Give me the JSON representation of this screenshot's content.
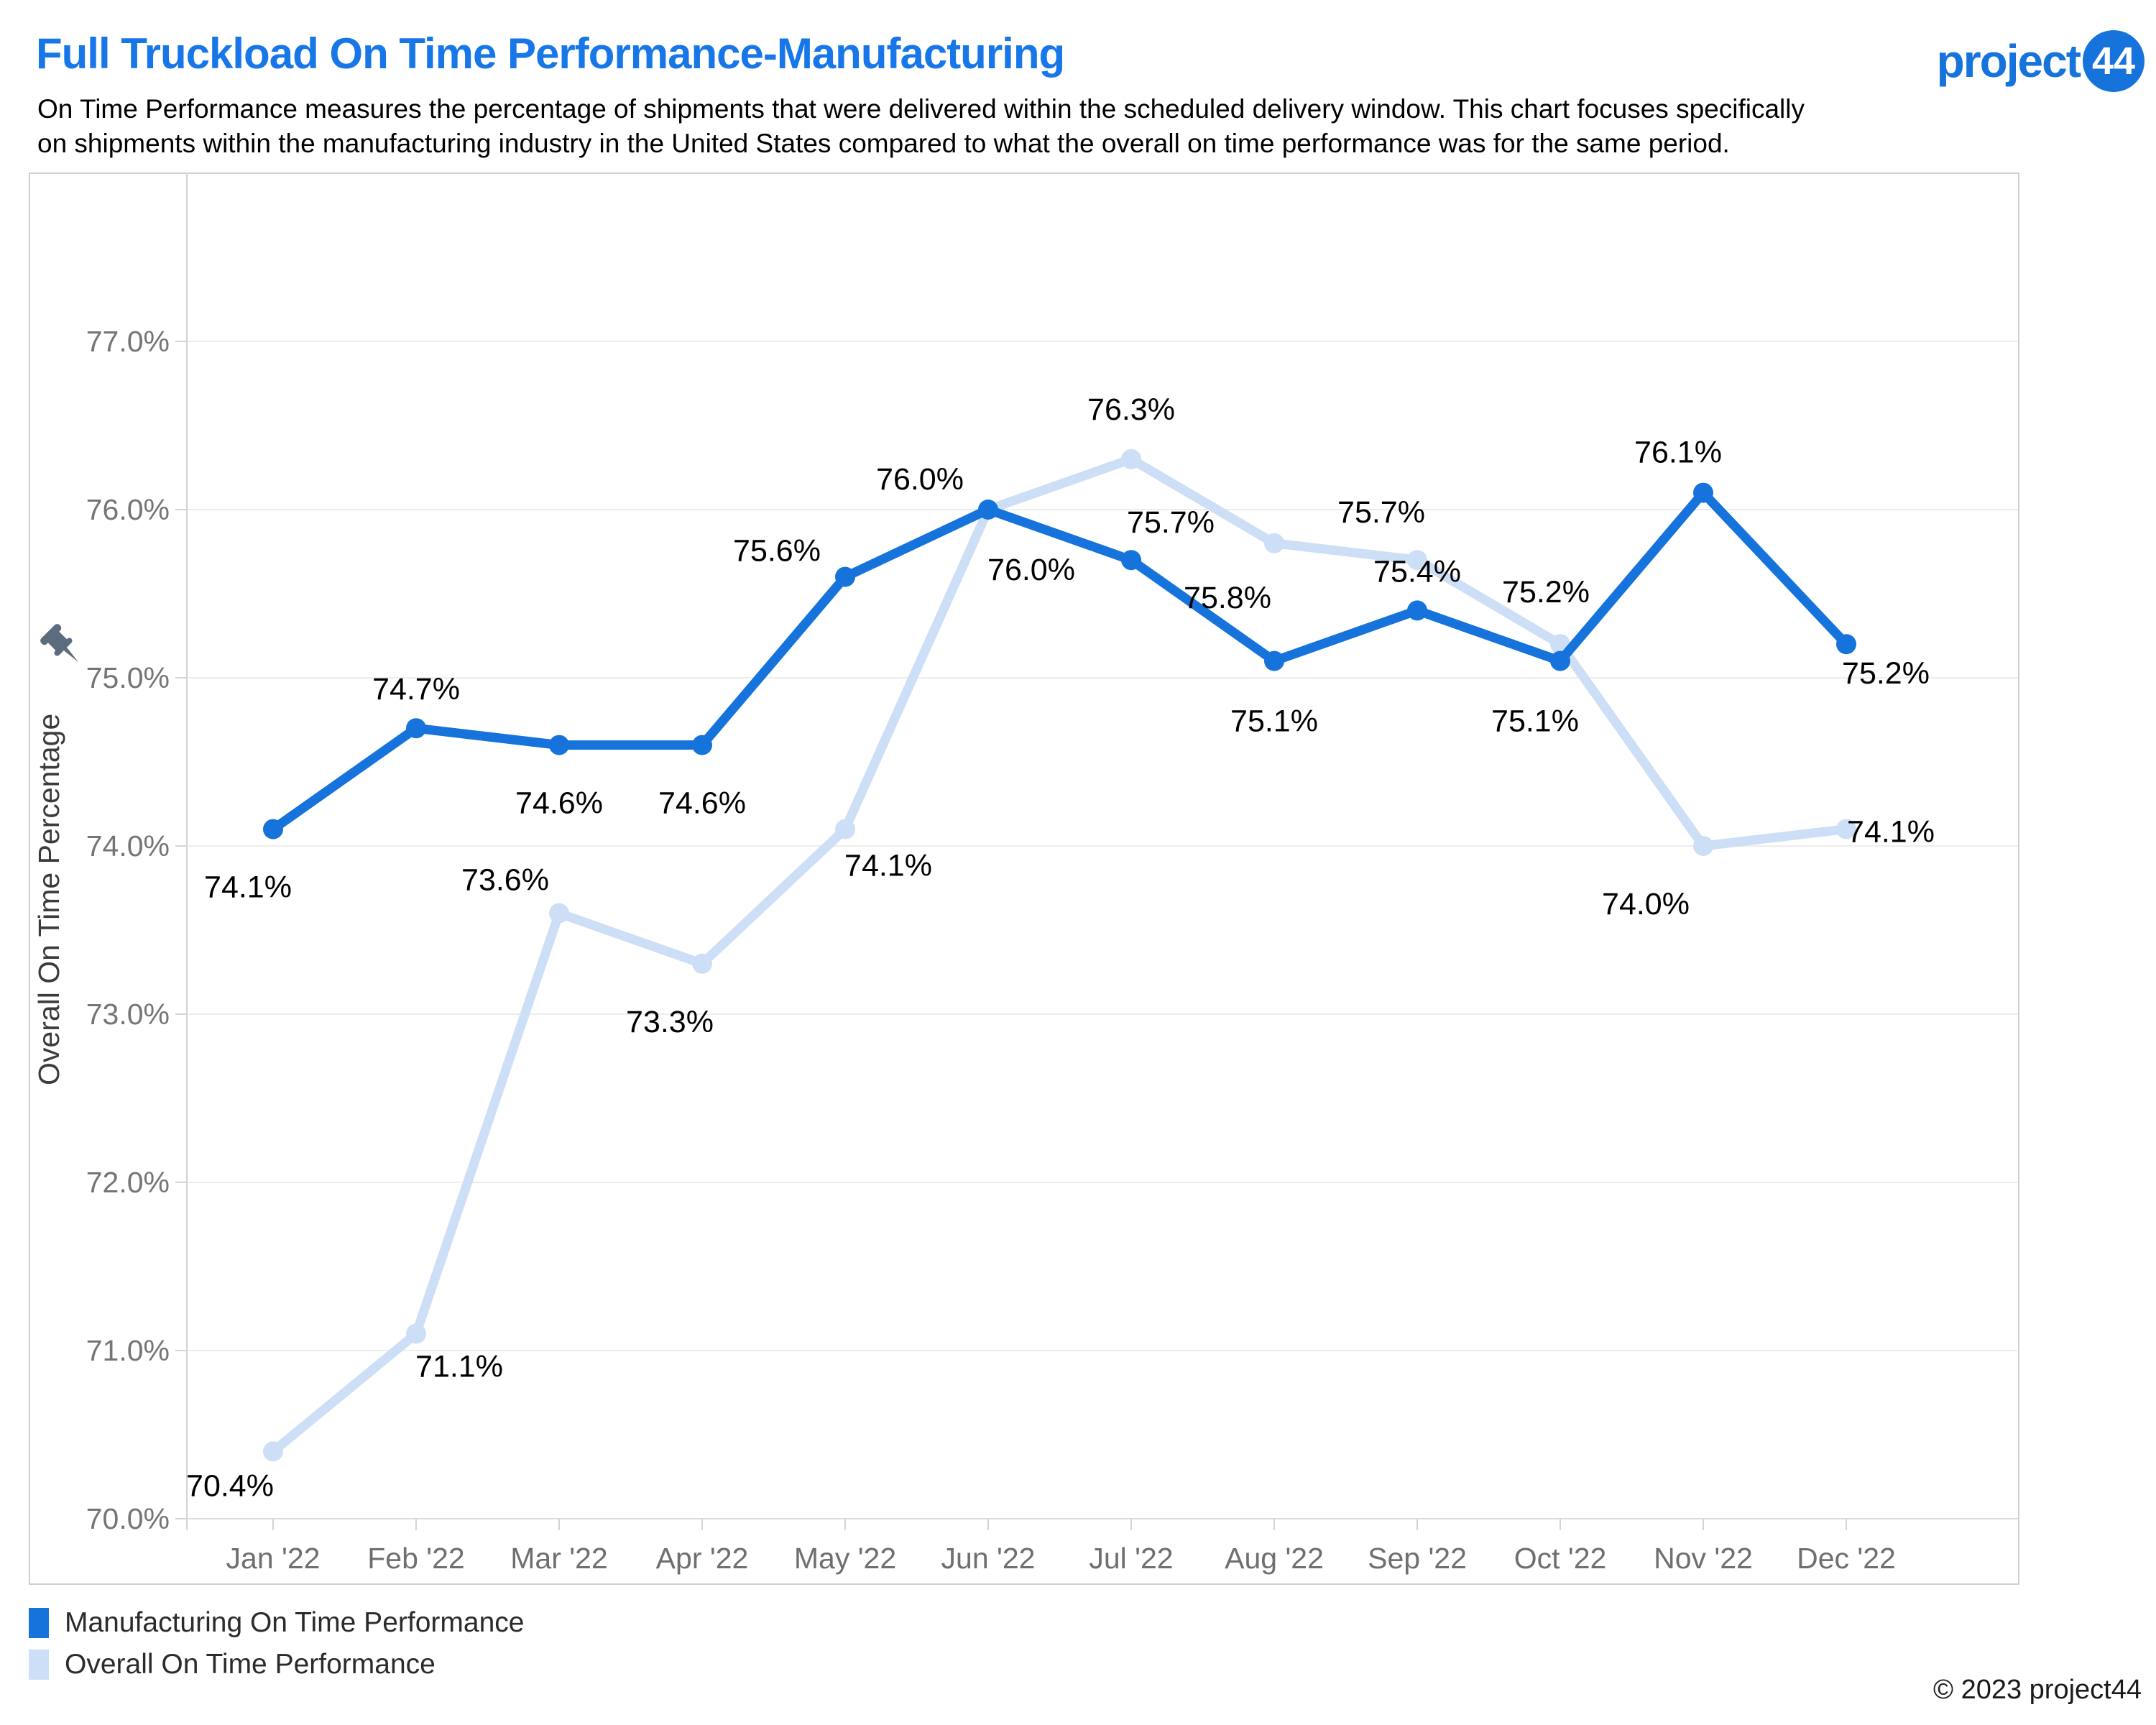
{
  "header": {
    "title": "Full Truckload On Time Performance-Manufacturing",
    "subtitle": "On Time Performance measures the percentage of shipments that were delivered within the scheduled delivery window. This chart focuses specifically\non shipments within the manufacturing industry in the United States compared to what the overall on time performance was for the same period.",
    "logo_text": "project",
    "logo_badge": "44"
  },
  "colors": {
    "brand_blue": "#1573DB",
    "light_blue": "#CDDFF6",
    "grid": "#EDEDED",
    "grid_bottom": "#DCDCDC",
    "axis_line": "#D4D4D4",
    "border": "#D0D0D0",
    "tick_text": "#757575",
    "month_text": "#6F6F6F",
    "axis_title_text": "#3B3B3B",
    "data_label_text": "#000000",
    "pin": "#5B6C7E"
  },
  "chart_data": {
    "type": "line",
    "title": "Full Truckload On Time Performance-Manufacturing",
    "y_axis_title": "Overall On Time Percentage",
    "grid": true,
    "legend_position": "bottom-left",
    "ylim": [
      70.0,
      78.0
    ],
    "y_tick_values": [
      77,
      76,
      75,
      74,
      73,
      72,
      71,
      70
    ],
    "y_tick_labels": [
      "77.0%",
      "76.0%",
      "75.0%",
      "74.0%",
      "73.0%",
      "72.0%",
      "71.0%",
      "70.0%"
    ],
    "categories": [
      "Jan '22",
      "Feb '22",
      "Mar '22",
      "Apr '22",
      "May '22",
      "Jun '22",
      "Jul '22",
      "Aug '22",
      "Sep '22",
      "Oct '22",
      "Nov '22",
      "Dec '22"
    ],
    "series": [
      {
        "name": "Overall On Time Performance",
        "color": "#CDDFF6",
        "values": [
          70.4,
          71.1,
          73.6,
          73.3,
          74.1,
          76.0,
          76.3,
          75.8,
          75.7,
          75.2,
          74.0,
          74.1
        ],
        "labels": [
          "70.4%",
          "71.1%",
          "73.6%",
          "73.3%",
          "74.1%",
          "76.0%",
          "76.3%",
          "75.8%",
          "75.7%",
          "75.2%",
          "74.0%",
          "74.1%"
        ],
        "label_offsets": [
          [
            -60,
            62
          ],
          [
            60,
            60
          ],
          [
            -75,
            -32
          ],
          [
            -45,
            95
          ],
          [
            60,
            65
          ],
          [
            60,
            98
          ],
          [
            0,
            -55
          ],
          [
            -65,
            90
          ],
          [
            -50,
            -52
          ],
          [
            -20,
            -58
          ],
          [
            -80,
            95
          ],
          [
            62,
            18
          ]
        ]
      },
      {
        "name": "Manufacturing On Time Performance",
        "color": "#1573DB",
        "values": [
          74.1,
          74.7,
          74.6,
          74.6,
          75.6,
          76.0,
          75.7,
          75.1,
          75.4,
          75.1,
          76.1,
          75.2
        ],
        "labels": [
          "74.1%",
          "74.7%",
          "74.6%",
          "74.6%",
          "75.6%",
          "76.0%",
          "75.7%",
          "75.1%",
          "75.4%",
          "75.1%",
          "76.1%",
          "75.2%"
        ],
        "label_offsets": [
          [
            -35,
            95
          ],
          [
            0,
            -40
          ],
          [
            0,
            95
          ],
          [
            0,
            95
          ],
          [
            -95,
            -22
          ],
          [
            -95,
            -28
          ],
          [
            55,
            -38
          ],
          [
            0,
            98
          ],
          [
            0,
            -40
          ],
          [
            -35,
            98
          ],
          [
            -35,
            -42
          ],
          [
            55,
            55
          ]
        ]
      }
    ]
  },
  "legend": {
    "items": [
      {
        "label": "Manufacturing On Time Performance",
        "color": "#1573DB"
      },
      {
        "label": "Overall On Time Performance",
        "color": "#CDDFF6"
      }
    ]
  },
  "footer": {
    "copyright": "© 2023 project44"
  }
}
